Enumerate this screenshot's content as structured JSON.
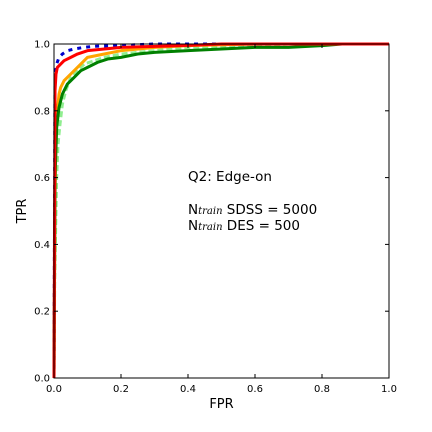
{
  "chart_data": {
    "type": "line",
    "title": "",
    "xlabel": "FPR",
    "ylabel": "TPR",
    "xlim": [
      0,
      1
    ],
    "ylim": [
      0,
      1
    ],
    "x_ticks": [
      "0.0",
      "0.2",
      "0.4",
      "0.6",
      "0.8",
      "1.0"
    ],
    "y_ticks": [
      "0.0",
      "0.2",
      "0.4",
      "0.6",
      "0.8",
      "1.0"
    ],
    "grid": false,
    "annotations": {
      "title": "Q2: Edge-on",
      "line1": {
        "prefix": "N",
        "subscript": "train",
        "text": " SDSS = 5000"
      },
      "line2": {
        "prefix": "N",
        "subscript": "train",
        "text": " DES = 500"
      }
    },
    "series": [
      {
        "color": "#90ee90",
        "style": "dashed",
        "x": [
          0,
          0.002,
          0.005,
          0.008,
          0.012,
          0.018,
          0.025,
          0.035,
          0.05,
          0.07,
          0.09,
          0.12,
          0.15,
          0.2,
          0.3,
          0.4,
          0.55,
          0.7,
          1.0
        ],
        "y": [
          0,
          0.28,
          0.45,
          0.6,
          0.7,
          0.76,
          0.82,
          0.86,
          0.9,
          0.92,
          0.94,
          0.95,
          0.96,
          0.97,
          0.98,
          0.99,
          0.99,
          1.0,
          1.0
        ]
      },
      {
        "color": "#ffa500",
        "style": "solid",
        "x": [
          0,
          0.003,
          0.006,
          0.01,
          0.015,
          0.02,
          0.03,
          0.05,
          0.08,
          0.1,
          0.15,
          0.2,
          0.3,
          0.4,
          0.6,
          0.8,
          1.0
        ],
        "y": [
          0,
          0.55,
          0.72,
          0.8,
          0.85,
          0.87,
          0.89,
          0.91,
          0.94,
          0.96,
          0.97,
          0.98,
          0.99,
          0.995,
          1.0,
          1.0,
          1.0
        ]
      },
      {
        "color": "#0000cc",
        "style": "dotted",
        "x": [
          0,
          0.003,
          0.008,
          0.015,
          0.025,
          0.04,
          0.06,
          0.09,
          0.12,
          0.2,
          0.3,
          0.4,
          1.0
        ],
        "y": [
          0,
          0.9,
          0.94,
          0.96,
          0.97,
          0.98,
          0.985,
          0.99,
          0.993,
          0.996,
          1.0,
          1.0,
          1.0
        ]
      },
      {
        "color": "#008000",
        "style": "solid",
        "x": [
          0,
          0.003,
          0.008,
          0.015,
          0.025,
          0.04,
          0.06,
          0.08,
          0.1,
          0.13,
          0.16,
          0.2,
          0.25,
          0.3,
          0.4,
          0.5,
          0.6,
          0.7,
          0.8,
          0.86,
          1.0
        ],
        "y": [
          0,
          0.6,
          0.75,
          0.81,
          0.85,
          0.88,
          0.9,
          0.92,
          0.93,
          0.945,
          0.955,
          0.96,
          0.97,
          0.975,
          0.98,
          0.985,
          0.99,
          0.99,
          0.995,
          1.0,
          1.0
        ]
      },
      {
        "color": "#ff0000",
        "style": "solid",
        "x": [
          0,
          0.003,
          0.006,
          0.01,
          0.02,
          0.03,
          0.05,
          0.07,
          0.1,
          0.15,
          0.2,
          0.3,
          0.4,
          0.5,
          1.0
        ],
        "y": [
          0,
          0.86,
          0.91,
          0.93,
          0.94,
          0.95,
          0.96,
          0.97,
          0.98,
          0.985,
          0.99,
          0.993,
          0.996,
          1.0,
          1.0
        ]
      }
    ]
  }
}
